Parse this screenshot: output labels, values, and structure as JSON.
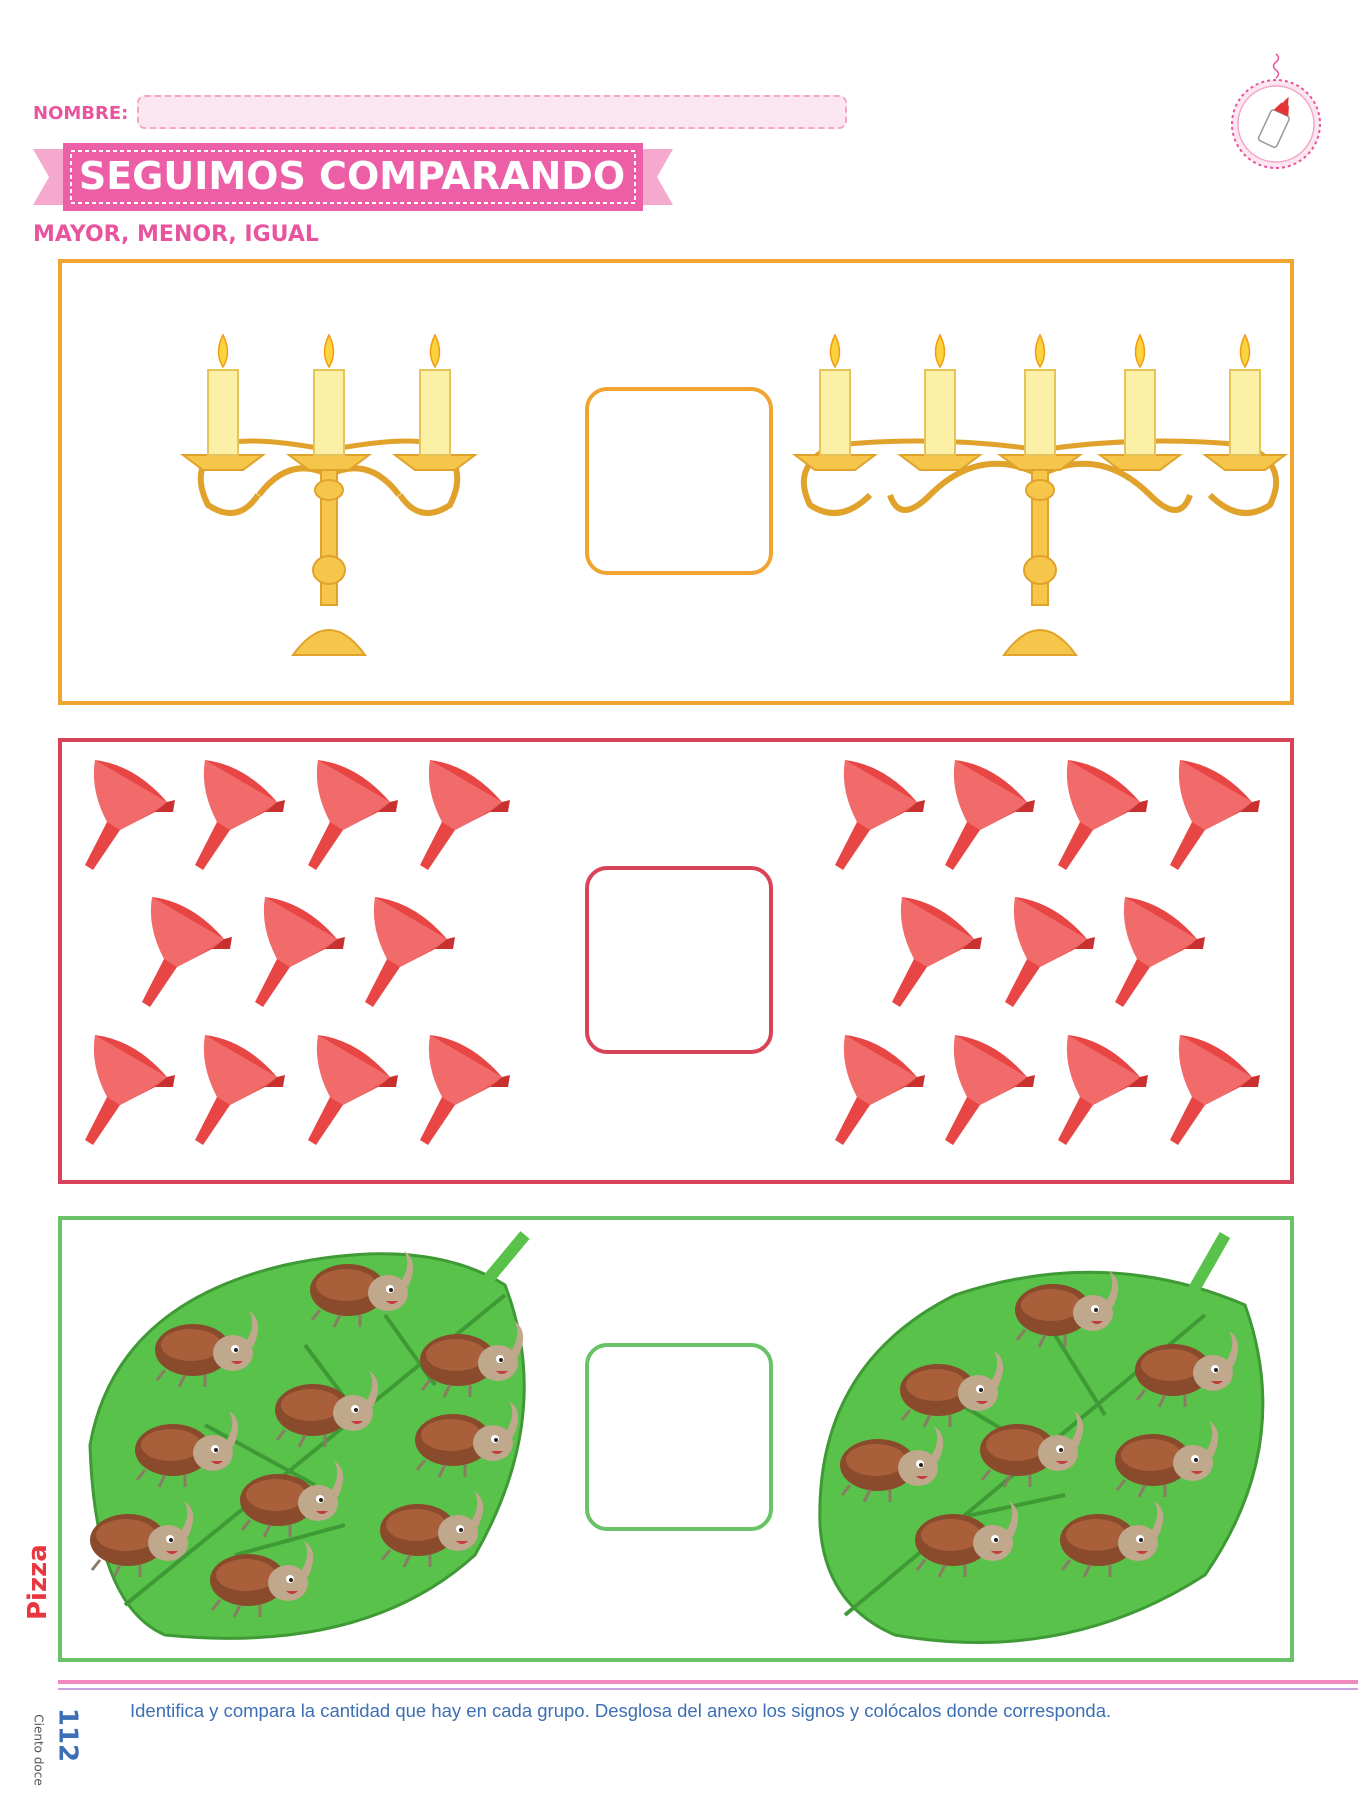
{
  "header": {
    "name_label": "NOMBRE:",
    "title": "SEGUIMOS COMPARANDO",
    "subtitle": "MAYOR, MENOR, IGUAL",
    "badge_icon": "glue-bottle-icon"
  },
  "exercises": [
    {
      "item": "candle",
      "icon": "candelabra-icon",
      "left_count": 3,
      "right_count": 5,
      "color": "#f0a431"
    },
    {
      "item": "funnel",
      "icon": "funnel-icon",
      "left_count": 11,
      "right_count": 11,
      "color": "#d9435a"
    },
    {
      "item": "beetle",
      "icon": "beetle-icon",
      "left_count": 9,
      "right_count": 8,
      "color": "#6ac266"
    }
  ],
  "footer": {
    "instruction": "Identifica y compara la cantidad que hay en cada grupo. Desglosa del anexo los signos y colócalos donde corresponda.",
    "page_number": "112",
    "page_words": "Ciento doce",
    "brand": "Pizza"
  },
  "colors": {
    "accent": "#e8559e",
    "text_blue": "#3c6fb5"
  }
}
